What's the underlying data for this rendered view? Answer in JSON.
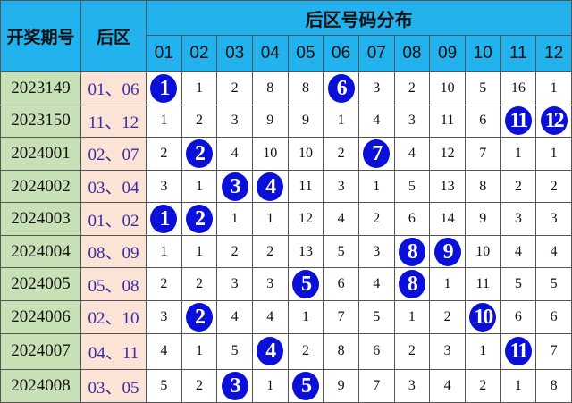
{
  "header": {
    "period_label": "开奖期号",
    "back_label": "后区",
    "distribution_title": "后区号码分布",
    "numbers": [
      "01",
      "02",
      "03",
      "04",
      "05",
      "06",
      "07",
      "08",
      "09",
      "10",
      "11",
      "12"
    ]
  },
  "colors": {
    "header": "#22b2ee",
    "period_bg": "#c8e0b5",
    "back_bg": "#fbe3d6",
    "ball": "#0a10d8",
    "back_text": "#3b2aa8"
  },
  "rows": [
    {
      "period": "2023149",
      "back": "01、06",
      "cells": [
        "1",
        "1",
        "2",
        "8",
        "8",
        "6",
        "3",
        "2",
        "10",
        "5",
        "16",
        "1"
      ],
      "hits": [
        0,
        5
      ]
    },
    {
      "period": "2023150",
      "back": "11、12",
      "cells": [
        "1",
        "2",
        "3",
        "9",
        "9",
        "1",
        "4",
        "3",
        "11",
        "6",
        "11",
        "12"
      ],
      "hits": [
        10,
        11
      ]
    },
    {
      "period": "2024001",
      "back": "02、07",
      "cells": [
        "2",
        "2",
        "4",
        "10",
        "10",
        "2",
        "7",
        "4",
        "12",
        "7",
        "1",
        "1"
      ],
      "hits": [
        1,
        6
      ]
    },
    {
      "period": "2024002",
      "back": "03、04",
      "cells": [
        "3",
        "1",
        "3",
        "4",
        "11",
        "3",
        "1",
        "5",
        "13",
        "8",
        "2",
        "2"
      ],
      "hits": [
        2,
        3
      ]
    },
    {
      "period": "2024003",
      "back": "01、02",
      "cells": [
        "1",
        "2",
        "1",
        "1",
        "12",
        "4",
        "2",
        "6",
        "14",
        "9",
        "3",
        "3"
      ],
      "hits": [
        0,
        1
      ]
    },
    {
      "period": "2024004",
      "back": "08、09",
      "cells": [
        "1",
        "1",
        "2",
        "2",
        "13",
        "5",
        "3",
        "8",
        "9",
        "10",
        "4",
        "4"
      ],
      "hits": [
        7,
        8
      ]
    },
    {
      "period": "2024005",
      "back": "05、08",
      "cells": [
        "2",
        "2",
        "3",
        "3",
        "5",
        "6",
        "4",
        "8",
        "1",
        "11",
        "5",
        "5"
      ],
      "hits": [
        4,
        7
      ]
    },
    {
      "period": "2024006",
      "back": "02、10",
      "cells": [
        "3",
        "2",
        "4",
        "4",
        "1",
        "7",
        "5",
        "1",
        "2",
        "10",
        "6",
        "6"
      ],
      "hits": [
        1,
        9
      ]
    },
    {
      "period": "2024007",
      "back": "04、11",
      "cells": [
        "4",
        "1",
        "5",
        "4",
        "2",
        "8",
        "6",
        "2",
        "3",
        "1",
        "11",
        "7"
      ],
      "hits": [
        3,
        10
      ]
    },
    {
      "period": "2024008",
      "back": "03、05",
      "cells": [
        "5",
        "2",
        "3",
        "1",
        "5",
        "9",
        "7",
        "3",
        "4",
        "2",
        "1",
        "8"
      ],
      "hits": [
        2,
        4
      ]
    }
  ]
}
